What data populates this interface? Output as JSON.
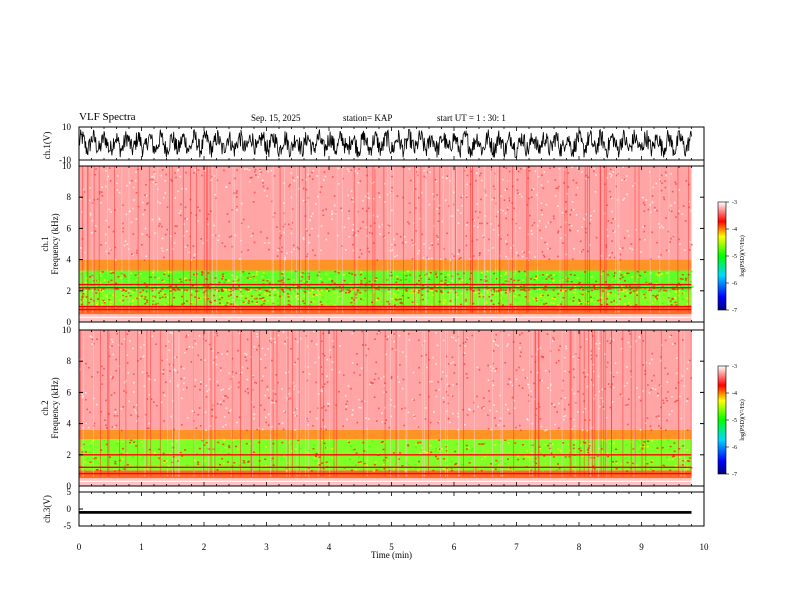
{
  "header": {
    "title": "VLF Spectra",
    "date": "Sep. 15, 2025",
    "station": "station= KAP",
    "start_ut": "start  UT =   1 : 30: 1"
  },
  "chart_data": [
    {
      "type": "line",
      "name": "ch1-waveform",
      "ylabel": "ch.1(V)",
      "ylim": [
        -10,
        10
      ],
      "ytick_labels": [
        "10",
        "-10"
      ],
      "xlim": [
        0,
        10
      ],
      "data_xrange": [
        0,
        9.8
      ],
      "description_values": {
        "amplitude_min": -8,
        "amplitude_max": 8,
        "mean": 0
      }
    },
    {
      "type": "heatmap",
      "name": "ch1-spectrogram",
      "ylabel": "Frequency (kHz)",
      "channel_label": "ch.1",
      "ylim": [
        0,
        10
      ],
      "yticks": [
        0,
        2,
        4,
        6,
        8,
        10
      ],
      "ytick_labels": [
        "0",
        "2",
        "4",
        "6",
        "8",
        "10"
      ],
      "xlim": [
        0,
        10
      ],
      "data_xrange": [
        0,
        9.8
      ],
      "color_scale": {
        "min": -7,
        "max": -3,
        "label": "log(PSD)(V²/Hz)",
        "ticks": [
          "-3",
          "-4",
          "-5",
          "-6",
          "-7"
        ]
      },
      "bands": [
        {
          "fmin": 0.0,
          "fmax": 0.5,
          "level": -3.2
        },
        {
          "fmin": 0.5,
          "fmax": 1.0,
          "level": -3.9
        },
        {
          "fmin": 1.0,
          "fmax": 2.0,
          "level": -4.7
        },
        {
          "fmin": 2.0,
          "fmax": 2.3,
          "level": -4.9
        },
        {
          "fmin": 2.3,
          "fmax": 3.3,
          "level": -4.8
        },
        {
          "fmin": 3.3,
          "fmax": 4.0,
          "level": -4.0
        },
        {
          "fmin": 4.0,
          "fmax": 10.0,
          "level": -3.3
        }
      ],
      "lines_khz": [
        0.8,
        1.0,
        2.2,
        2.4
      ]
    },
    {
      "type": "heatmap",
      "name": "ch2-spectrogram",
      "ylabel": "Frequency (kHz)",
      "channel_label": "ch.2",
      "ylim": [
        0,
        10
      ],
      "yticks": [
        0,
        2,
        4,
        6,
        8,
        10
      ],
      "ytick_labels": [
        "0",
        "2",
        "4",
        "6",
        "8",
        "10"
      ],
      "xlim": [
        0,
        10
      ],
      "data_xrange": [
        0,
        9.8
      ],
      "color_scale": {
        "min": -7,
        "max": -3,
        "label": "log(PSD)(V²/Hz)",
        "ticks": [
          "-3",
          "-4",
          "-5",
          "-6",
          "-7"
        ]
      },
      "bands": [
        {
          "fmin": 0.0,
          "fmax": 0.5,
          "level": -3.2
        },
        {
          "fmin": 0.5,
          "fmax": 1.0,
          "level": -3.9
        },
        {
          "fmin": 1.0,
          "fmax": 3.0,
          "level": -4.7
        },
        {
          "fmin": 3.0,
          "fmax": 3.6,
          "level": -4.0
        },
        {
          "fmin": 3.6,
          "fmax": 10.0,
          "level": -3.3
        }
      ],
      "lines_khz": [
        0.8,
        1.2,
        2.0
      ]
    },
    {
      "type": "line",
      "name": "ch3-waveform",
      "ylabel": "ch.3(V)",
      "ylim": [
        -5,
        5
      ],
      "yticks": [
        5,
        0,
        -5
      ],
      "ytick_labels": [
        "5",
        "0",
        "-5"
      ],
      "xlim": [
        0,
        10
      ],
      "data_xrange": [
        0,
        9.8
      ],
      "description_values": {
        "offset": -1,
        "amplitude": 0.4
      },
      "xlabel": "Time (min)",
      "xticks": [
        0,
        1,
        2,
        3,
        4,
        5,
        6,
        7,
        8,
        9,
        10
      ],
      "xtick_labels": [
        "0",
        "1",
        "2",
        "3",
        "4",
        "5",
        "6",
        "7",
        "8",
        "9",
        "10"
      ]
    }
  ],
  "colors": {
    "red": "#ff0000",
    "yellow": "#ffff00",
    "green": "#00ff00",
    "blue": "#0000ff",
    "navy": "#000080",
    "axis": "#000000"
  }
}
